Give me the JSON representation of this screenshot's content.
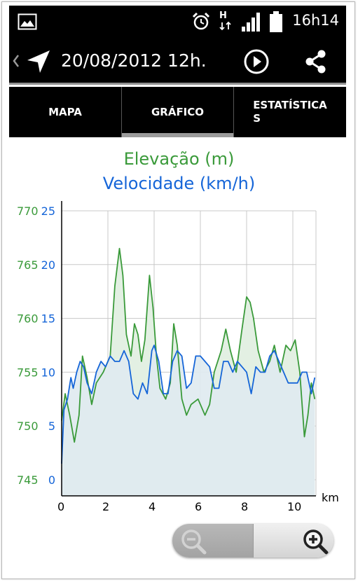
{
  "status_bar": {
    "time": "16h14",
    "icons": [
      "gallery-notification-icon",
      "alarm-icon",
      "hspa-data-icon",
      "signal-icon",
      "battery-icon"
    ],
    "network_label": "H"
  },
  "app_bar": {
    "title": "20/08/2012 12h.",
    "icons": [
      "back-chevron-icon",
      "navigation-arrow-icon",
      "play-icon",
      "share-icon"
    ]
  },
  "tabs": [
    {
      "label": "MAPA",
      "selected": false
    },
    {
      "label": "GRÁFICO",
      "selected": true
    },
    {
      "label": "ESTATÍSTICA\nS",
      "selected": false
    }
  ],
  "zoom": {
    "icons": [
      "zoom-out-icon",
      "zoom-in-icon"
    ],
    "zoom_out_enabled": false,
    "zoom_in_enabled": true
  },
  "colors": {
    "elevation": "#3a9a3a",
    "speed": "#1565d8",
    "elevation_fill": "#e3f0e3",
    "speed_fill": "#dfeaf0",
    "background": "#000000"
  },
  "chart_data": {
    "type": "line",
    "titles": [
      "Elevação (m)",
      "Velocidade (km/h)"
    ],
    "xlabel": "km",
    "xlim": [
      0,
      11
    ],
    "x_ticks": [
      0,
      2,
      4,
      6,
      8,
      10
    ],
    "x_tick_labels": [
      "0",
      "2",
      "4",
      "6",
      "8",
      "10"
    ],
    "grid": true,
    "left_axis_elevation": {
      "ylim": [
        745,
        770
      ],
      "ticks": [
        745,
        750,
        755,
        760,
        765,
        770
      ],
      "tick_labels": [
        "745",
        "750",
        "755",
        "760",
        "765",
        "770"
      ]
    },
    "left_axis_speed": {
      "ylim": [
        0,
        25
      ],
      "ticks": [
        0,
        5,
        10,
        15,
        20,
        25
      ],
      "tick_labels": [
        "0",
        "5",
        "10",
        "15",
        "20",
        "25"
      ]
    },
    "series": [
      {
        "name": "Elevação (m)",
        "x": [
          0,
          0.15,
          0.35,
          0.55,
          0.75,
          0.9,
          1.1,
          1.3,
          1.5,
          1.8,
          2.1,
          2.3,
          2.5,
          2.65,
          2.8,
          3.0,
          3.15,
          3.3,
          3.45,
          3.6,
          3.8,
          3.95,
          4.1,
          4.25,
          4.5,
          4.7,
          4.85,
          5.0,
          5.2,
          5.4,
          5.6,
          5.9,
          6.2,
          6.4,
          6.6,
          6.9,
          7.1,
          7.3,
          7.55,
          7.8,
          8.0,
          8.15,
          8.3,
          8.5,
          8.75,
          9.0,
          9.2,
          9.45,
          9.7,
          9.9,
          10.1,
          10.3,
          10.5,
          10.65,
          10.8,
          10.95
        ],
        "values": [
          750.5,
          753,
          751,
          748.5,
          751,
          756.5,
          754.5,
          752,
          754,
          755,
          756.5,
          763,
          766.5,
          764,
          758.5,
          756.5,
          759.5,
          758.5,
          756,
          758,
          764,
          761,
          756.5,
          753.5,
          752.5,
          754,
          759.5,
          757.5,
          752.5,
          751,
          752,
          752.5,
          751,
          752,
          755,
          757,
          759,
          757,
          755,
          759,
          762,
          761.5,
          760,
          757,
          755,
          756,
          757.5,
          755,
          757.5,
          757,
          758,
          755,
          749,
          751,
          754,
          752.5
        ]
      },
      {
        "name": "Velocidade (km/h)",
        "x": [
          0,
          0.1,
          0.25,
          0.4,
          0.5,
          0.65,
          0.8,
          0.95,
          1.1,
          1.3,
          1.5,
          1.7,
          1.9,
          2.1,
          2.3,
          2.5,
          2.7,
          2.9,
          3.1,
          3.3,
          3.5,
          3.7,
          3.9,
          4.0,
          4.2,
          4.4,
          4.6,
          4.8,
          5.0,
          5.2,
          5.4,
          5.6,
          5.8,
          6.0,
          6.2,
          6.4,
          6.6,
          6.8,
          7.0,
          7.2,
          7.4,
          7.6,
          7.8,
          8.0,
          8.2,
          8.4,
          8.6,
          8.8,
          9.0,
          9.2,
          9.4,
          9.6,
          9.8,
          10.0,
          10.2,
          10.4,
          10.6,
          10.8,
          10.95
        ],
        "values": [
          1.5,
          6.5,
          7.5,
          9.5,
          8.5,
          10,
          11,
          10.5,
          9,
          8,
          10,
          11,
          10.5,
          11.5,
          11,
          11,
          12,
          11,
          8,
          7.5,
          9,
          8,
          12,
          12.5,
          11,
          8,
          8,
          11,
          12,
          11.5,
          8.5,
          9,
          11.5,
          11.5,
          11,
          10.5,
          8.5,
          8.5,
          11,
          11,
          10,
          11,
          10.5,
          10,
          8,
          10.5,
          10,
          10,
          11.5,
          12,
          11,
          10,
          9,
          9,
          9,
          10,
          10,
          8,
          9.5
        ]
      }
    ]
  }
}
